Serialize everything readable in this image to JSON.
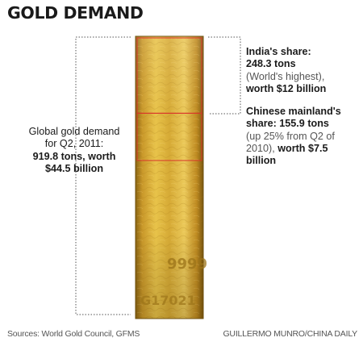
{
  "chart_data": {
    "type": "bar",
    "title": "GOLD DEMAND",
    "categories": [
      "Global gold demand",
      "India",
      "Chinese mainland"
    ],
    "values": [
      919.8,
      248.3,
      155.9
    ],
    "unit": "tons",
    "annotations": {
      "global": {
        "line1": "Global gold demand",
        "line2": "for Q2, 2011:",
        "value_line": "919.8 tons, worth",
        "worth_line": "$44.5 billion"
      },
      "india": {
        "heading": "India's share:",
        "value_line": "248.3 tons",
        "light_line": "(World's highest),",
        "worth_line": "worth $12 billion"
      },
      "china": {
        "heading": "Chinese mainland's",
        "value_line": "share: 155.9 tons",
        "light_line_1": "(up 25% from Q2 of",
        "light_line_2": "2010),",
        "worth_part": "worth $7.5",
        "worth_line_2": "billion"
      }
    },
    "bar_stamp": {
      "purity": "9999",
      "serial": "G17021"
    },
    "colors": {
      "gold_light": "#e8c34a",
      "gold_mid": "#c9982a",
      "gold_dark": "#8a6412",
      "highlight_box": "#d9342b",
      "bracket": "#555555"
    }
  },
  "footer": {
    "source": "Sources: World Gold Council, GFMS",
    "credit": "GUILLERMO MUNRO/CHINA DAILY"
  }
}
